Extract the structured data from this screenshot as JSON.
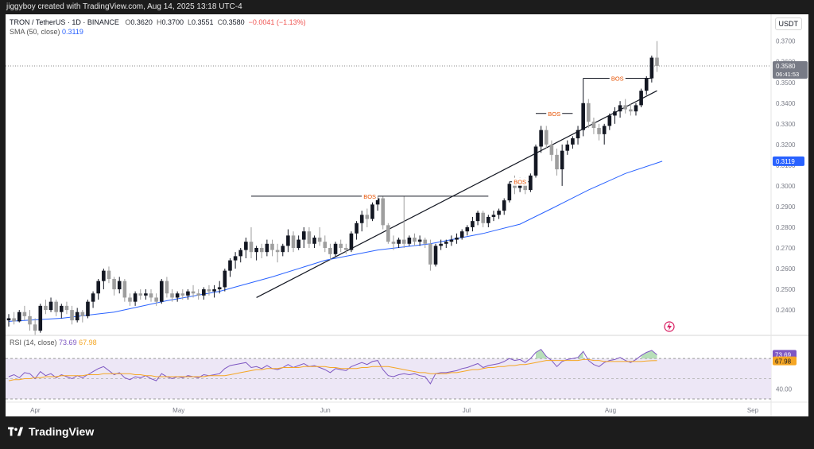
{
  "header": {
    "attribution": "jiggyboy created with TradingView.com, Aug 14, 2025 13:18 UTC-4"
  },
  "legend": {
    "symbol": "TRON / TetherUS · 1D · BINANCE",
    "o_label": "O",
    "o": "0.3620",
    "h_label": "H",
    "h": "0.3700",
    "l_label": "L",
    "l": "0.3551",
    "c_label": "C",
    "c": "0.3580",
    "change": "−0.0041 (−1.13%)",
    "sma_label": "SMA (50, close)",
    "sma_value": "0.3119",
    "rsi_label": "RSI (14, close)",
    "rsi_value": "73.69",
    "rsi_ma_value": "67.98"
  },
  "pair_tag": "USDT",
  "price_tag": {
    "price": "0.3580",
    "countdown": "06:41:53"
  },
  "sma_tag": "0.3119",
  "rsi_tags": {
    "rsi": "73.69",
    "ma": "67.98",
    "level": "40.00"
  },
  "footer": {
    "brand": "TradingView"
  },
  "colors": {
    "up": "#131722",
    "down": "#9e9e9e",
    "sma": "#2962ff",
    "bos": "#e65100",
    "rsi": "#7e57c2",
    "rsi_ma": "#f5a623",
    "rsi_band": "#ede7f6"
  },
  "chart_data": {
    "type": "candlestick",
    "symbol": "TRON / TetherUS",
    "timeframe": "1D",
    "exchange": "BINANCE",
    "y_axis_ticks": [
      "0.3700",
      "0.3600",
      "0.3500",
      "0.3400",
      "0.3300",
      "0.3200",
      "0.3100",
      "0.3000",
      "0.2900",
      "0.2800",
      "0.2700",
      "0.2600",
      "0.2500",
      "0.2400"
    ],
    "x_axis_ticks": [
      "Apr",
      "May",
      "Jun",
      "Jul",
      "Aug",
      "Sep"
    ],
    "ohlc": [
      [
        0.235,
        0.238,
        0.232,
        0.236
      ],
      [
        0.236,
        0.239,
        0.233,
        0.2345
      ],
      [
        0.2345,
        0.24,
        0.234,
        0.239
      ],
      [
        0.239,
        0.242,
        0.235,
        0.237
      ],
      [
        0.237,
        0.24,
        0.23,
        0.233
      ],
      [
        0.233,
        0.236,
        0.228,
        0.23
      ],
      [
        0.23,
        0.243,
        0.229,
        0.242
      ],
      [
        0.242,
        0.245,
        0.238,
        0.24
      ],
      [
        0.24,
        0.246,
        0.239,
        0.244
      ],
      [
        0.244,
        0.245,
        0.237,
        0.239
      ],
      [
        0.239,
        0.243,
        0.236,
        0.242
      ],
      [
        0.242,
        0.244,
        0.238,
        0.24
      ],
      [
        0.24,
        0.242,
        0.233,
        0.235
      ],
      [
        0.235,
        0.241,
        0.234,
        0.239
      ],
      [
        0.239,
        0.24,
        0.234,
        0.237
      ],
      [
        0.237,
        0.245,
        0.236,
        0.244
      ],
      [
        0.244,
        0.249,
        0.241,
        0.248
      ],
      [
        0.248,
        0.255,
        0.245,
        0.254
      ],
      [
        0.254,
        0.26,
        0.25,
        0.259
      ],
      [
        0.259,
        0.261,
        0.253,
        0.255
      ],
      [
        0.255,
        0.256,
        0.247,
        0.25
      ],
      [
        0.25,
        0.256,
        0.248,
        0.254
      ],
      [
        0.254,
        0.255,
        0.244,
        0.246
      ],
      [
        0.246,
        0.248,
        0.242,
        0.244
      ],
      [
        0.244,
        0.249,
        0.242,
        0.248
      ],
      [
        0.248,
        0.25,
        0.245,
        0.247
      ],
      [
        0.247,
        0.25,
        0.245,
        0.248
      ],
      [
        0.248,
        0.25,
        0.244,
        0.246
      ],
      [
        0.246,
        0.248,
        0.242,
        0.244
      ],
      [
        0.244,
        0.255,
        0.243,
        0.254
      ],
      [
        0.254,
        0.256,
        0.246,
        0.248
      ],
      [
        0.248,
        0.25,
        0.244,
        0.246
      ],
      [
        0.246,
        0.249,
        0.244,
        0.248
      ],
      [
        0.248,
        0.25,
        0.245,
        0.247
      ],
      [
        0.247,
        0.25,
        0.245,
        0.249
      ],
      [
        0.249,
        0.252,
        0.246,
        0.248
      ],
      [
        0.248,
        0.25,
        0.245,
        0.247
      ],
      [
        0.247,
        0.251,
        0.245,
        0.25
      ],
      [
        0.25,
        0.252,
        0.247,
        0.249
      ],
      [
        0.249,
        0.252,
        0.246,
        0.25
      ],
      [
        0.25,
        0.254,
        0.248,
        0.251
      ],
      [
        0.251,
        0.26,
        0.249,
        0.259
      ],
      [
        0.259,
        0.265,
        0.256,
        0.264
      ],
      [
        0.264,
        0.268,
        0.26,
        0.266
      ],
      [
        0.266,
        0.27,
        0.263,
        0.269
      ],
      [
        0.269,
        0.275,
        0.265,
        0.273
      ],
      [
        0.273,
        0.28,
        0.265,
        0.268
      ],
      [
        0.268,
        0.271,
        0.264,
        0.27
      ],
      [
        0.27,
        0.272,
        0.265,
        0.268
      ],
      [
        0.268,
        0.274,
        0.266,
        0.272
      ],
      [
        0.272,
        0.274,
        0.266,
        0.269
      ],
      [
        0.269,
        0.272,
        0.263,
        0.268
      ],
      [
        0.268,
        0.272,
        0.266,
        0.271
      ],
      [
        0.271,
        0.279,
        0.268,
        0.276
      ],
      [
        0.276,
        0.278,
        0.268,
        0.27
      ],
      [
        0.27,
        0.276,
        0.269,
        0.274
      ],
      [
        0.274,
        0.28,
        0.27,
        0.278
      ],
      [
        0.278,
        0.28,
        0.27,
        0.272
      ],
      [
        0.272,
        0.276,
        0.27,
        0.275
      ],
      [
        0.275,
        0.28,
        0.271,
        0.273
      ],
      [
        0.273,
        0.276,
        0.268,
        0.27
      ],
      [
        0.27,
        0.272,
        0.264,
        0.267
      ],
      [
        0.267,
        0.273,
        0.266,
        0.272
      ],
      [
        0.272,
        0.274,
        0.268,
        0.27
      ],
      [
        0.27,
        0.272,
        0.267,
        0.269
      ],
      [
        0.269,
        0.278,
        0.268,
        0.277
      ],
      [
        0.277,
        0.283,
        0.274,
        0.282
      ],
      [
        0.282,
        0.288,
        0.278,
        0.286
      ],
      [
        0.286,
        0.289,
        0.28,
        0.284
      ],
      [
        0.284,
        0.292,
        0.283,
        0.291
      ],
      [
        0.291,
        0.295,
        0.288,
        0.294
      ],
      [
        0.294,
        0.295,
        0.279,
        0.281
      ],
      [
        0.281,
        0.282,
        0.272,
        0.273
      ],
      [
        0.273,
        0.276,
        0.269,
        0.272
      ],
      [
        0.272,
        0.275,
        0.27,
        0.274
      ],
      [
        0.274,
        0.295,
        0.27,
        0.272
      ],
      [
        0.272,
        0.276,
        0.271,
        0.275
      ],
      [
        0.275,
        0.277,
        0.271,
        0.273
      ],
      [
        0.273,
        0.276,
        0.271,
        0.274
      ],
      [
        0.274,
        0.275,
        0.27,
        0.272
      ],
      [
        0.272,
        0.274,
        0.259,
        0.262
      ],
      [
        0.262,
        0.272,
        0.261,
        0.271
      ],
      [
        0.271,
        0.274,
        0.269,
        0.272
      ],
      [
        0.272,
        0.274,
        0.27,
        0.273
      ],
      [
        0.273,
        0.276,
        0.271,
        0.274
      ],
      [
        0.274,
        0.277,
        0.272,
        0.275
      ],
      [
        0.275,
        0.279,
        0.274,
        0.278
      ],
      [
        0.278,
        0.281,
        0.276,
        0.28
      ],
      [
        0.28,
        0.285,
        0.278,
        0.283
      ],
      [
        0.283,
        0.288,
        0.281,
        0.287
      ],
      [
        0.287,
        0.288,
        0.28,
        0.282
      ],
      [
        0.282,
        0.286,
        0.28,
        0.285
      ],
      [
        0.285,
        0.288,
        0.283,
        0.286
      ],
      [
        0.286,
        0.289,
        0.284,
        0.288
      ],
      [
        0.288,
        0.294,
        0.286,
        0.293
      ],
      [
        0.293,
        0.302,
        0.292,
        0.301
      ],
      [
        0.301,
        0.305,
        0.296,
        0.299
      ],
      [
        0.299,
        0.304,
        0.297,
        0.302
      ],
      [
        0.302,
        0.304,
        0.296,
        0.298
      ],
      [
        0.298,
        0.306,
        0.297,
        0.305
      ],
      [
        0.305,
        0.32,
        0.304,
        0.319
      ],
      [
        0.319,
        0.329,
        0.316,
        0.327
      ],
      [
        0.327,
        0.329,
        0.318,
        0.32
      ],
      [
        0.32,
        0.322,
        0.312,
        0.315
      ],
      [
        0.315,
        0.318,
        0.305,
        0.308
      ],
      [
        0.308,
        0.32,
        0.3,
        0.317
      ],
      [
        0.317,
        0.322,
        0.315,
        0.32
      ],
      [
        0.32,
        0.324,
        0.318,
        0.323
      ],
      [
        0.323,
        0.329,
        0.32,
        0.327
      ],
      [
        0.327,
        0.352,
        0.324,
        0.34
      ],
      [
        0.34,
        0.342,
        0.328,
        0.331
      ],
      [
        0.331,
        0.333,
        0.325,
        0.328
      ],
      [
        0.328,
        0.33,
        0.322,
        0.325
      ],
      [
        0.325,
        0.33,
        0.32,
        0.329
      ],
      [
        0.329,
        0.335,
        0.327,
        0.334
      ],
      [
        0.334,
        0.338,
        0.33,
        0.336
      ],
      [
        0.336,
        0.341,
        0.333,
        0.339
      ],
      [
        0.339,
        0.342,
        0.335,
        0.337
      ],
      [
        0.337,
        0.34,
        0.334,
        0.336
      ],
      [
        0.336,
        0.34,
        0.334,
        0.339
      ],
      [
        0.339,
        0.347,
        0.338,
        0.346
      ],
      [
        0.346,
        0.353,
        0.344,
        0.352
      ],
      [
        0.352,
        0.363,
        0.35,
        0.362
      ],
      [
        0.362,
        0.37,
        0.3551,
        0.358
      ]
    ],
    "sma50": [
      [
        0,
        0.2345
      ],
      [
        10,
        0.236
      ],
      [
        20,
        0.239
      ],
      [
        30,
        0.2445
      ],
      [
        40,
        0.249
      ],
      [
        50,
        0.256
      ],
      [
        60,
        0.264
      ],
      [
        70,
        0.269
      ],
      [
        80,
        0.272
      ],
      [
        90,
        0.277
      ],
      [
        97,
        0.2815
      ],
      [
        103,
        0.289
      ],
      [
        110,
        0.298
      ],
      [
        117,
        0.306
      ],
      [
        124,
        0.3119
      ]
    ],
    "trendline": [
      [
        0.246,
        47
      ],
      [
        0.346,
        123
      ]
    ],
    "bos": [
      {
        "label": "BOS",
        "level": 0.295,
        "from": 46,
        "to": 91
      },
      {
        "label": "BOS",
        "level": 0.302,
        "from": 95,
        "to": 99
      },
      {
        "label": "BOS",
        "level": 0.335,
        "from": 100,
        "to": 107
      },
      {
        "label": "BOS",
        "level": 0.352,
        "from": 109,
        "to": 122
      }
    ],
    "rsi": {
      "label": "RSI (14, close)",
      "ylim": [
        30,
        85
      ],
      "band": [
        30,
        70
      ],
      "level_label": "40.00",
      "values": [
        52,
        54,
        51,
        56,
        55,
        50,
        57,
        53,
        55,
        51,
        54,
        52,
        50,
        53,
        51,
        54,
        57,
        60,
        62,
        58,
        54,
        56,
        51,
        49,
        52,
        51,
        53,
        50,
        48,
        55,
        52,
        50,
        52,
        51,
        53,
        52,
        51,
        54,
        53,
        54,
        55,
        60,
        63,
        64,
        65,
        66,
        61,
        62,
        60,
        63,
        60,
        59,
        61,
        64,
        61,
        63,
        65,
        62,
        63,
        61,
        59,
        56,
        60,
        59,
        58,
        62,
        64,
        66,
        64,
        67,
        68,
        59,
        53,
        52,
        54,
        55,
        54,
        55,
        53,
        52,
        45,
        55,
        56,
        56,
        57,
        58,
        60,
        61,
        63,
        65,
        61,
        63,
        64,
        65,
        67,
        70,
        68,
        69,
        66,
        70,
        76,
        79,
        72,
        68,
        62,
        67,
        69,
        70,
        71,
        77,
        68,
        64,
        62,
        66,
        68,
        69,
        71,
        68,
        66,
        69,
        73,
        76,
        78,
        73.69
      ],
      "ma": [
        48,
        49,
        49,
        50,
        50,
        51,
        51,
        52,
        52,
        52,
        53,
        53,
        53,
        53,
        53,
        54,
        54,
        54,
        55,
        55,
        55,
        55,
        55,
        55,
        54,
        54,
        53,
        53,
        52,
        52,
        52,
        52,
        52,
        52,
        52,
        52,
        52,
        52,
        53,
        53,
        53,
        53,
        54,
        55,
        56,
        57,
        58,
        59,
        59,
        60,
        60,
        60,
        61,
        61,
        61,
        61,
        62,
        62,
        62,
        62,
        62,
        61,
        61,
        60,
        60,
        60,
        60,
        61,
        61,
        62,
        62,
        62,
        62,
        61,
        60,
        59,
        58,
        57,
        56,
        56,
        55,
        55,
        55,
        55,
        56,
        56,
        57,
        58,
        59,
        59,
        60,
        61,
        61,
        62,
        62,
        63,
        63,
        64,
        64,
        65,
        66,
        67,
        68,
        68,
        68,
        68,
        68,
        68,
        68,
        69,
        69,
        68,
        68,
        67,
        67,
        67,
        67,
        67,
        67,
        67,
        67,
        67.5,
        67.8,
        67.98
      ]
    }
  }
}
